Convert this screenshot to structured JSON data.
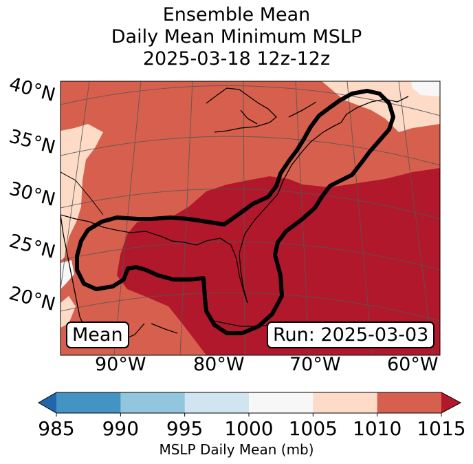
{
  "title": {
    "line1": "Ensemble Mean",
    "line2": "Daily Mean Minimum MSLP",
    "line3": "2025-03-18 12z-12z"
  },
  "map": {
    "lat_labels": [
      "40°N",
      "35°N",
      "30°N",
      "25°N",
      "20°N"
    ],
    "lon_labels": [
      "90°W",
      "80°W",
      "70°W",
      "60°W"
    ],
    "mean_box": "Mean",
    "run_box": "Run: 2025-03-03",
    "fill_colors": {
      "lt985": "#2166ac",
      "985_990": "#4393c3",
      "990_995": "#92c5de",
      "995_1000": "#d1e5f0",
      "1000_1005": "#f7f7f7",
      "1005_1010": "#fddbc7",
      "1010_1015": "#d6604d",
      "gt1015": "#b2182b"
    },
    "contour_color": "#000000"
  },
  "colorbar": {
    "ticks": [
      "985",
      "990",
      "995",
      "1000",
      "1005",
      "1010",
      "1015"
    ],
    "colors": [
      "#2166ac",
      "#4393c3",
      "#92c5de",
      "#d1e5f0",
      "#f7f7f7",
      "#fddbc7",
      "#d6604d",
      "#b2182b"
    ],
    "label": "MSLP Daily Mean (mb)"
  }
}
